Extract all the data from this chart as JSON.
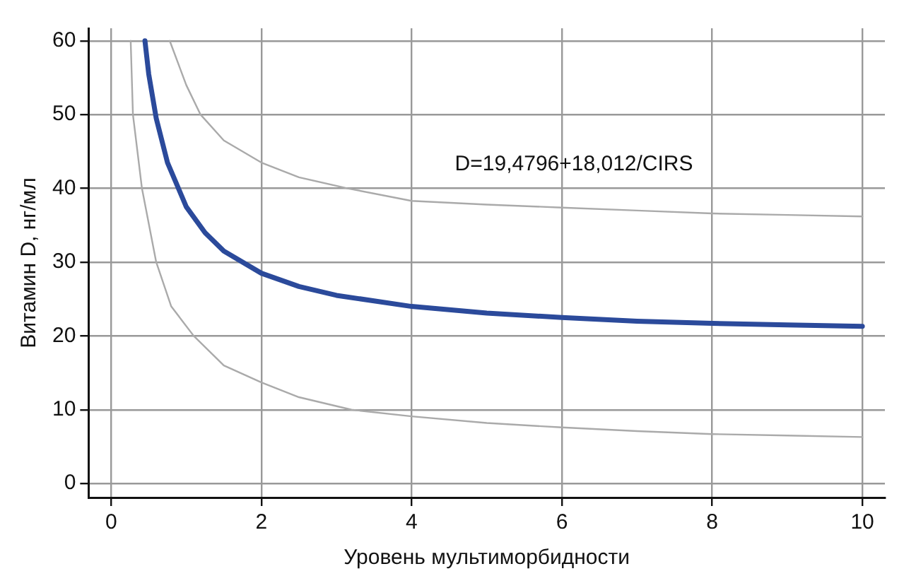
{
  "chart_data": {
    "type": "line",
    "xlabel": "Уровень мультиморбидности",
    "ylabel": "Витамин D, нг/мл",
    "annotations": [
      "D=19,4796+18,012/CIRS"
    ],
    "series": [
      {
        "color": "#2b4a9b",
        "x": [
          0.45,
          0.5,
          0.6,
          0.75,
          1,
          1.25,
          1.5,
          2,
          2.5,
          3,
          4,
          5,
          6,
          7,
          8,
          9,
          10
        ],
        "values": [
          60,
          55.5,
          49.5,
          43.5,
          37.5,
          34,
          31.5,
          28.5,
          26.7,
          25.5,
          24,
          23.1,
          22.5,
          22,
          21.7,
          21.5,
          21.3
        ]
      },
      {
        "color": "#aaaaaa",
        "x": [
          0.78,
          1,
          1.19,
          1.5,
          2,
          2.5,
          3.15,
          4,
          5,
          6,
          7,
          8,
          9,
          10
        ],
        "values": [
          60,
          54,
          50,
          46.5,
          43.5,
          41.5,
          40,
          38.3,
          37.8,
          37.4,
          37,
          36.6,
          36.4,
          36.2
        ]
      },
      {
        "color": "#aaaaaa",
        "x": [
          0.26,
          0.29,
          0.41,
          0.6,
          0.8,
          1.1,
          1.5,
          2,
          2.5,
          3.2,
          4,
          5,
          6,
          7,
          8,
          9,
          10
        ],
        "values": [
          60,
          50,
          40,
          30,
          24,
          20,
          16,
          13.7,
          11.7,
          10,
          9.1,
          8.2,
          7.6,
          7.1,
          6.7,
          6.5,
          6.3
        ]
      }
    ],
    "xlim": [
      -0.3,
      10.3
    ],
    "xticks": [
      0,
      2,
      4,
      6,
      8,
      10
    ],
    "ylim": [
      -1.9,
      61.7
    ],
    "yticks": [
      0,
      10,
      20,
      30,
      40,
      50,
      60
    ],
    "grid": true,
    "legend": false,
    "marker": "none",
    "line_style": "solid"
  }
}
